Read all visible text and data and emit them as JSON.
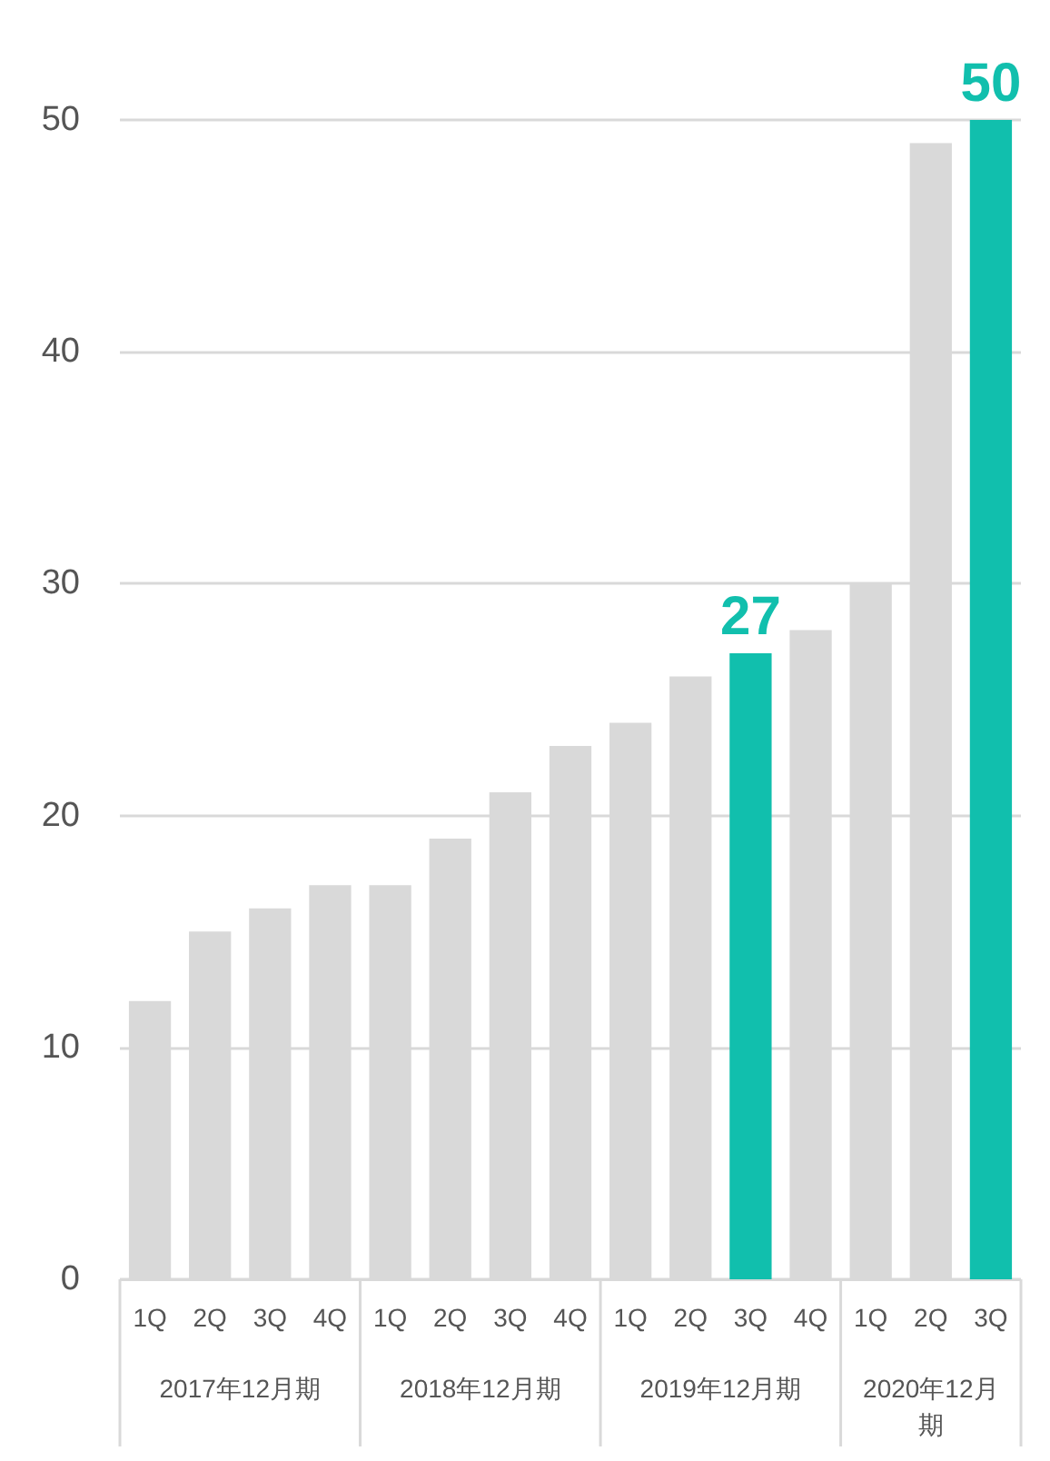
{
  "chart_data": {
    "type": "bar",
    "categories": [
      "1Q",
      "2Q",
      "3Q",
      "4Q",
      "1Q",
      "2Q",
      "3Q",
      "4Q",
      "1Q",
      "2Q",
      "3Q",
      "4Q",
      "1Q",
      "2Q",
      "3Q"
    ],
    "values": [
      12,
      15,
      16,
      17,
      17,
      19,
      21,
      23,
      24,
      26,
      27,
      28,
      30,
      49,
      50
    ],
    "colors": [
      "#d9d9d9",
      "#d9d9d9",
      "#d9d9d9",
      "#d9d9d9",
      "#d9d9d9",
      "#d9d9d9",
      "#d9d9d9",
      "#d9d9d9",
      "#d9d9d9",
      "#d9d9d9",
      "#11bfad",
      "#d9d9d9",
      "#d9d9d9",
      "#d9d9d9",
      "#11bfad"
    ],
    "value_labels": [
      null,
      null,
      null,
      null,
      null,
      null,
      null,
      null,
      null,
      null,
      "27",
      null,
      null,
      null,
      "50"
    ],
    "annotations": [
      "2017年12月期",
      "2018年12月期",
      "2019年12月期",
      "2020年12月期"
    ],
    "ylim": [
      0,
      50
    ],
    "yticks": [
      0,
      10,
      20,
      30,
      40,
      50
    ],
    "grid": "y"
  }
}
